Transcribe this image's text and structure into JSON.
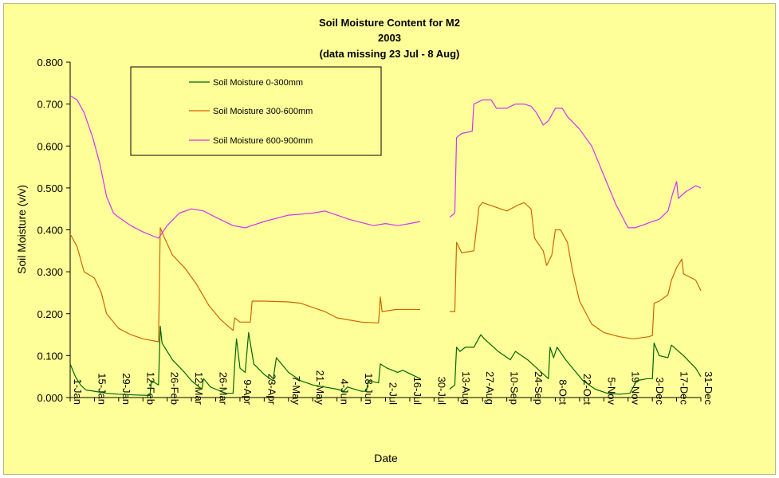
{
  "chart_data": {
    "type": "line",
    "title": "Soil Moisture Content for M2",
    "subtitle": "2003",
    "note": "(data missing 23 Jul - 8 Aug)",
    "xlabel": "Date",
    "ylabel": "Soil Moisture (v/v)",
    "ylim": [
      0,
      0.8
    ],
    "yticks": [
      "0.000",
      "0.100",
      "0.200",
      "0.300",
      "0.400",
      "0.500",
      "0.600",
      "0.700",
      "0.800"
    ],
    "xlim": [
      "1-Jan",
      "31-Dec"
    ],
    "xticks": [
      "1-Jan",
      "15-Jan",
      "29-Jan",
      "12-Feb",
      "26-Feb",
      "12-Mar",
      "26-Mar",
      "9-Apr",
      "23-Apr",
      "7-May",
      "21-May",
      "4-Jun",
      "18-Jun",
      "2-Jul",
      "16-Jul",
      "30-Jul",
      "13-Aug",
      "27-Aug",
      "10-Sep",
      "24-Sep",
      "8-Oct",
      "22-Oct",
      "5-Nov",
      "19-Nov",
      "3-Dec",
      "17-Dec",
      "31-Dec"
    ],
    "grid": false,
    "legend_position": "top-left",
    "series": [
      {
        "name": "Soil Moisture 0-300mm",
        "color": "#006600",
        "points": [
          [
            "1-Jan",
            0.08
          ],
          [
            "4-Jan",
            0.05
          ],
          [
            "7-Jan",
            0.03
          ],
          [
            "10-Jan",
            0.018
          ],
          [
            "15-Jan",
            0.015
          ],
          [
            "22-Jan",
            0.01
          ],
          [
            "29-Jan",
            0.008
          ],
          [
            "8-Feb",
            0.006
          ],
          [
            "16-Feb",
            0.005
          ],
          [
            "17-Feb",
            0.04
          ],
          [
            "21-Feb",
            0.03
          ],
          [
            "22-Feb",
            0.17
          ],
          [
            "23-Feb",
            0.13
          ],
          [
            "1-Mar",
            0.09
          ],
          [
            "8-Mar",
            0.06
          ],
          [
            "12-Mar",
            0.04
          ],
          [
            "18-Mar",
            0.02
          ],
          [
            "19-Mar",
            0.045
          ],
          [
            "23-Mar",
            0.025
          ],
          [
            "26-Mar",
            0.02
          ],
          [
            "1-Apr",
            0.01
          ],
          [
            "5-Apr",
            0.01
          ],
          [
            "6-Apr",
            0.08
          ],
          [
            "7-Apr",
            0.14
          ],
          [
            "9-Apr",
            0.07
          ],
          [
            "12-Apr",
            0.06
          ],
          [
            "14-Apr",
            0.155
          ],
          [
            "17-Apr",
            0.08
          ],
          [
            "23-Apr",
            0.055
          ],
          [
            "28-Apr",
            0.04
          ],
          [
            "30-Apr",
            0.095
          ],
          [
            "7-May",
            0.06
          ],
          [
            "14-May",
            0.04
          ],
          [
            "21-May",
            0.03
          ],
          [
            "28-May",
            0.025
          ],
          [
            "4-Jun",
            0.02
          ],
          [
            "8-Jun",
            0.015
          ],
          [
            "10-Jun",
            0.025
          ],
          [
            "18-Jun",
            0.015
          ],
          [
            "21-Jun",
            0.015
          ],
          [
            "22-Jun",
            0.04
          ],
          [
            "28-Jun",
            0.035
          ],
          [
            "29-Jun",
            0.08
          ],
          [
            "3-Jul",
            0.07
          ],
          [
            "9-Jul",
            0.06
          ],
          [
            "12-Jul",
            0.065
          ],
          [
            "22-Jul",
            0.045
          ],
          null,
          [
            "8-Aug",
            0.02
          ],
          [
            "11-Aug",
            0.03
          ],
          [
            "12-Aug",
            0.12
          ],
          [
            "14-Aug",
            0.11
          ],
          [
            "17-Aug",
            0.12
          ],
          [
            "22-Aug",
            0.12
          ],
          [
            "26-Aug",
            0.15
          ],
          [
            "28-Aug",
            0.14
          ],
          [
            "5-Sep",
            0.11
          ],
          [
            "12-Sep",
            0.09
          ],
          [
            "15-Sep",
            0.11
          ],
          [
            "22-Sep",
            0.09
          ],
          [
            "30-Sep",
            0.06
          ],
          [
            "4-Oct",
            0.045
          ],
          [
            "5-Oct",
            0.12
          ],
          [
            "7-Oct",
            0.095
          ],
          [
            "9-Oct",
            0.12
          ],
          [
            "14-Oct",
            0.09
          ],
          [
            "20-Oct",
            0.06
          ],
          [
            "24-Oct",
            0.04
          ],
          [
            "31-Oct",
            0.02
          ],
          [
            "7-Nov",
            0.01
          ],
          [
            "14-Nov",
            0.008
          ],
          [
            "20-Nov",
            0.01
          ],
          [
            "24-Nov",
            0.04
          ],
          [
            "30-Nov",
            0.045
          ],
          [
            "3-Dec",
            0.045
          ],
          [
            "4-Dec",
            0.13
          ],
          [
            "7-Dec",
            0.1
          ],
          [
            "12-Dec",
            0.095
          ],
          [
            "14-Dec",
            0.125
          ],
          [
            "21-Dec",
            0.1
          ],
          [
            "28-Dec",
            0.07
          ],
          [
            "31-Dec",
            0.05
          ]
        ]
      },
      {
        "name": "Soil Moisture 300-600mm",
        "color": "#cc6600",
        "points": [
          [
            "1-Jan",
            0.39
          ],
          [
            "5-Jan",
            0.36
          ],
          [
            "9-Jan",
            0.3
          ],
          [
            "15-Jan",
            0.285
          ],
          [
            "19-Jan",
            0.25
          ],
          [
            "22-Jan",
            0.2
          ],
          [
            "29-Jan",
            0.165
          ],
          [
            "5-Feb",
            0.15
          ],
          [
            "12-Feb",
            0.14
          ],
          [
            "21-Feb",
            0.133
          ],
          [
            "22-Feb",
            0.405
          ],
          [
            "24-Feb",
            0.385
          ],
          [
            "1-Mar",
            0.34
          ],
          [
            "8-Mar",
            0.31
          ],
          [
            "15-Mar",
            0.27
          ],
          [
            "22-Mar",
            0.22
          ],
          [
            "29-Mar",
            0.185
          ],
          [
            "5-Apr",
            0.16
          ],
          [
            "6-Apr",
            0.19
          ],
          [
            "9-Apr",
            0.18
          ],
          [
            "15-Apr",
            0.18
          ],
          [
            "16-Apr",
            0.23
          ],
          [
            "23-Apr",
            0.23
          ],
          [
            "7-May",
            0.228
          ],
          [
            "14-May",
            0.225
          ],
          [
            "21-May",
            0.215
          ],
          [
            "28-May",
            0.205
          ],
          [
            "4-Jun",
            0.19
          ],
          [
            "11-Jun",
            0.185
          ],
          [
            "18-Jun",
            0.18
          ],
          [
            "28-Jun",
            0.178
          ],
          [
            "29-Jun",
            0.24
          ],
          [
            "30-Jun",
            0.205
          ],
          [
            "8-Jul",
            0.21
          ],
          [
            "22-Jul",
            0.21
          ],
          null,
          [
            "8-Aug",
            0.205
          ],
          [
            "11-Aug",
            0.205
          ],
          [
            "12-Aug",
            0.37
          ],
          [
            "15-Aug",
            0.345
          ],
          [
            "22-Aug",
            0.35
          ],
          [
            "25-Aug",
            0.455
          ],
          [
            "27-Aug",
            0.465
          ],
          [
            "3-Sep",
            0.455
          ],
          [
            "10-Sep",
            0.445
          ],
          [
            "17-Sep",
            0.46
          ],
          [
            "20-Sep",
            0.465
          ],
          [
            "24-Sep",
            0.45
          ],
          [
            "26-Sep",
            0.38
          ],
          [
            "1-Oct",
            0.35
          ],
          [
            "3-Oct",
            0.315
          ],
          [
            "6-Oct",
            0.34
          ],
          [
            "8-Oct",
            0.4
          ],
          [
            "11-Oct",
            0.4
          ],
          [
            "15-Oct",
            0.37
          ],
          [
            "18-Oct",
            0.3
          ],
          [
            "22-Oct",
            0.23
          ],
          [
            "29-Oct",
            0.175
          ],
          [
            "5-Nov",
            0.155
          ],
          [
            "14-Nov",
            0.145
          ],
          [
            "22-Nov",
            0.14
          ],
          [
            "1-Dec",
            0.145
          ],
          [
            "3-Dec",
            0.148
          ],
          [
            "4-Dec",
            0.225
          ],
          [
            "7-Dec",
            0.23
          ],
          [
            "12-Dec",
            0.245
          ],
          [
            "14-Dec",
            0.28
          ],
          [
            "17-Dec",
            0.31
          ],
          [
            "20-Dec",
            0.33
          ],
          [
            "21-Dec",
            0.295
          ],
          [
            "28-Dec",
            0.28
          ],
          [
            "31-Dec",
            0.255
          ]
        ]
      },
      {
        "name": "Soil Moisture 600-900mm",
        "color": "#cc33ff",
        "points": [
          [
            "1-Jan",
            0.72
          ],
          [
            "5-Jan",
            0.71
          ],
          [
            "9-Jan",
            0.68
          ],
          [
            "14-Jan",
            0.62
          ],
          [
            "18-Jan",
            0.56
          ],
          [
            "22-Jan",
            0.48
          ],
          [
            "26-Jan",
            0.44
          ],
          [
            "29-Jan",
            0.43
          ],
          [
            "5-Feb",
            0.41
          ],
          [
            "12-Feb",
            0.395
          ],
          [
            "21-Feb",
            0.38
          ],
          [
            "26-Feb",
            0.41
          ],
          [
            "5-Mar",
            0.44
          ],
          [
            "12-Mar",
            0.45
          ],
          [
            "19-Mar",
            0.445
          ],
          [
            "26-Mar",
            0.43
          ],
          [
            "5-Apr",
            0.41
          ],
          [
            "12-Apr",
            0.405
          ],
          [
            "23-Apr",
            0.42
          ],
          [
            "7-May",
            0.435
          ],
          [
            "21-May",
            0.44
          ],
          [
            "28-May",
            0.445
          ],
          [
            "4-Jun",
            0.435
          ],
          [
            "11-Jun",
            0.425
          ],
          [
            "25-Jun",
            0.41
          ],
          [
            "2-Jul",
            0.415
          ],
          [
            "9-Jul",
            0.41
          ],
          [
            "16-Jul",
            0.415
          ],
          [
            "22-Jul",
            0.42
          ],
          null,
          [
            "8-Aug",
            0.43
          ],
          [
            "11-Aug",
            0.44
          ],
          [
            "12-Aug",
            0.62
          ],
          [
            "15-Aug",
            0.63
          ],
          [
            "21-Aug",
            0.635
          ],
          [
            "22-Aug",
            0.7
          ],
          [
            "27-Aug",
            0.71
          ],
          [
            "1-Sep",
            0.71
          ],
          [
            "4-Sep",
            0.69
          ],
          [
            "10-Sep",
            0.69
          ],
          [
            "15-Sep",
            0.7
          ],
          [
            "20-Sep",
            0.7
          ],
          [
            "24-Sep",
            0.695
          ],
          [
            "27-Sep",
            0.68
          ],
          [
            "1-Oct",
            0.65
          ],
          [
            "4-Oct",
            0.66
          ],
          [
            "8-Oct",
            0.69
          ],
          [
            "12-Oct",
            0.69
          ],
          [
            "15-Oct",
            0.67
          ],
          [
            "22-Oct",
            0.64
          ],
          [
            "29-Oct",
            0.6
          ],
          [
            "5-Nov",
            0.53
          ],
          [
            "12-Nov",
            0.46
          ],
          [
            "19-Nov",
            0.405
          ],
          [
            "23-Nov",
            0.405
          ],
          [
            "30-Nov",
            0.415
          ],
          [
            "3-Dec",
            0.42
          ],
          [
            "7-Dec",
            0.425
          ],
          [
            "12-Dec",
            0.445
          ],
          [
            "15-Dec",
            0.49
          ],
          [
            "17-Dec",
            0.515
          ],
          [
            "18-Dec",
            0.475
          ],
          [
            "22-Dec",
            0.49
          ],
          [
            "28-Dec",
            0.505
          ],
          [
            "31-Dec",
            0.5
          ]
        ]
      }
    ]
  }
}
